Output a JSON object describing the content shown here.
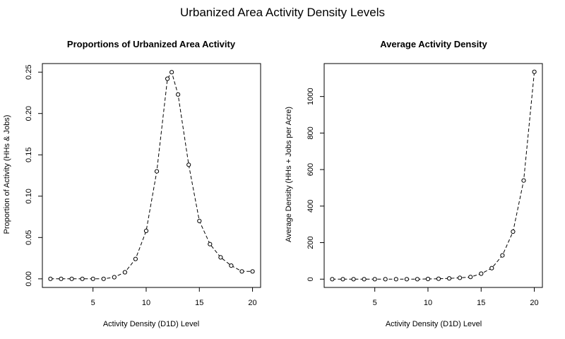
{
  "figure_title": "Urbanized Area Activity Density Levels",
  "chart_data": [
    {
      "type": "line",
      "title": "Proportions of Urbanized Area Activity",
      "xlabel": "Activity Density (D1D) Level",
      "ylabel": "Proportion of Activity (HHs & Jobs)",
      "x": [
        1,
        2,
        3,
        4,
        5,
        6,
        7,
        8,
        9,
        10,
        11,
        12,
        12.4,
        13,
        14,
        15,
        16,
        17,
        18,
        19,
        20
      ],
      "y": [
        0.0,
        0.0,
        0.0,
        0.0,
        0.0,
        0.0,
        0.002,
        0.008,
        0.024,
        0.058,
        0.13,
        0.242,
        0.25,
        0.223,
        0.138,
        0.07,
        0.042,
        0.026,
        0.016,
        0.009,
        0.009
      ],
      "xlim": [
        0.24,
        20.76
      ],
      "ylim": [
        -0.0104,
        0.2604
      ],
      "xticks": [
        5,
        10,
        15,
        20
      ],
      "yticks": [
        0.0,
        0.05,
        0.1,
        0.15,
        0.2,
        0.25
      ],
      "ytick_labels": [
        "0.00",
        "0.05",
        "0.10",
        "0.15",
        "0.20",
        "0.25"
      ],
      "line_style": "dashed",
      "markers": "open circle",
      "grid": false
    },
    {
      "type": "line",
      "title": "Average Activity Density",
      "xlabel": "Activity Density (D1D) Level",
      "ylabel": "Average Density (HHs + Jobs per Acre)",
      "x": [
        1,
        2,
        3,
        4,
        5,
        6,
        7,
        8,
        9,
        10,
        11,
        12,
        13,
        14,
        15,
        16,
        17,
        18,
        19,
        20
      ],
      "y": [
        0,
        0,
        0,
        0,
        0,
        0,
        0,
        0,
        0,
        1,
        2,
        4,
        7,
        12,
        30,
        60,
        130,
        260,
        540,
        1135
      ],
      "xlim": [
        0.24,
        20.76
      ],
      "ylim": [
        -45.4,
        1180.4
      ],
      "xticks": [
        5,
        10,
        15,
        20
      ],
      "yticks": [
        0,
        200,
        400,
        600,
        800,
        1000
      ],
      "ytick_labels": [
        "0",
        "200",
        "400",
        "600",
        "800",
        "1000"
      ],
      "line_style": "dashed",
      "markers": "open circle",
      "grid": false
    }
  ]
}
